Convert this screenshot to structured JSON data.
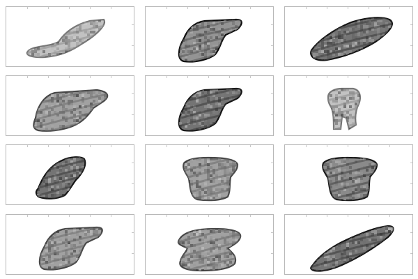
{
  "figure": {
    "grid": "4x3",
    "colormap": "grayscale",
    "panels": [
      {
        "shape": "slanted-smear-with-curl",
        "tone": "light"
      },
      {
        "shape": "slanted-block",
        "tone": "dark-edges"
      },
      {
        "shape": "slanted-loop",
        "tone": "dark"
      },
      {
        "shape": "wide-slanted-block",
        "tone": "medium"
      },
      {
        "shape": "slanted-block",
        "tone": "dark"
      },
      {
        "shape": "upright-stem",
        "tone": "light"
      },
      {
        "shape": "narrow-slanted-block",
        "tone": "dark"
      },
      {
        "shape": "cup",
        "tone": "medium"
      },
      {
        "shape": "cup",
        "tone": "dark-top"
      },
      {
        "shape": "slanted-block",
        "tone": "medium"
      },
      {
        "shape": "stacked-block",
        "tone": "medium"
      },
      {
        "shape": "slanted-streak",
        "tone": "dark"
      }
    ]
  }
}
